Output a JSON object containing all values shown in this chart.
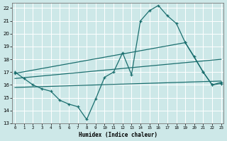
{
  "title": "",
  "xlabel": "Humidex (Indice chaleur)",
  "bg_color": "#cde8e8",
  "grid_color": "#ffffff",
  "line_color": "#1a6e6e",
  "xlim": [
    0,
    23
  ],
  "ylim": [
    13,
    22.4
  ],
  "yticks": [
    13,
    14,
    15,
    16,
    17,
    18,
    19,
    20,
    21,
    22
  ],
  "xticks": [
    0,
    1,
    2,
    3,
    4,
    5,
    6,
    7,
    8,
    9,
    10,
    11,
    12,
    13,
    14,
    15,
    16,
    17,
    18,
    19,
    20,
    21,
    22,
    23
  ],
  "series": [
    {
      "x": [
        0,
        1,
        2,
        3,
        4,
        5,
        6,
        7,
        8,
        9,
        10,
        11,
        12,
        13,
        14,
        15,
        16,
        17,
        18,
        19,
        20,
        21,
        22,
        23
      ],
      "y": [
        17.0,
        16.5,
        16.0,
        15.7,
        15.5,
        14.8,
        14.5,
        14.3,
        13.3,
        14.9,
        16.6,
        17.0,
        18.5,
        16.8,
        21.0,
        21.8,
        22.2,
        21.4,
        20.8,
        19.3,
        18.2,
        17.0,
        16.0,
        16.2
      ],
      "marker": true
    },
    {
      "x": [
        0,
        19,
        21,
        22,
        23
      ],
      "y": [
        16.9,
        19.3,
        17.0,
        16.0,
        16.1
      ],
      "marker": true
    },
    {
      "x": [
        0,
        23
      ],
      "y": [
        16.5,
        18.0
      ],
      "marker": false
    },
    {
      "x": [
        0,
        23
      ],
      "y": [
        15.8,
        16.3
      ],
      "marker": false
    }
  ]
}
